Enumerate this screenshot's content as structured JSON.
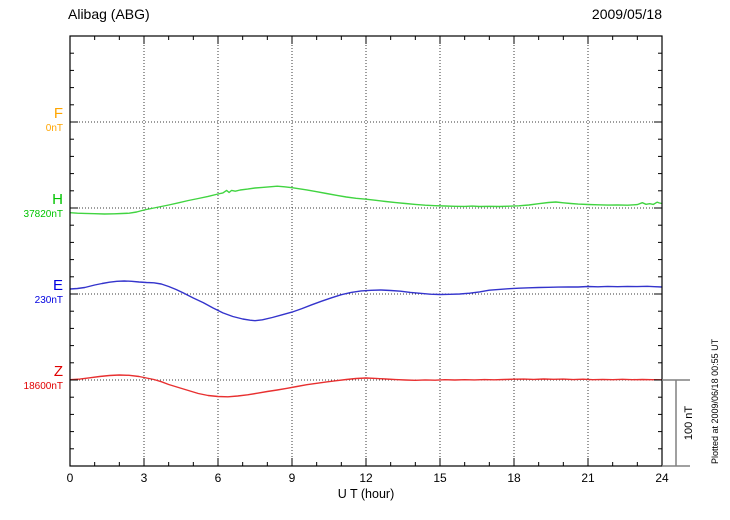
{
  "header": {
    "station_title": "Alibag (ABG)",
    "date": "2009/05/18"
  },
  "chart_data": {
    "type": "line",
    "title": "Alibag (ABG)",
    "date": "2009/05/18",
    "xlabel": "U T (hour)",
    "xlim": [
      0,
      24
    ],
    "x_ticks": [
      0,
      3,
      6,
      9,
      12,
      15,
      18,
      21,
      24
    ],
    "x_minor_step_hours": 1,
    "y_minor_division_nT": 20,
    "baseline_spacing_nT": 100,
    "grid": "dotted vertical lines every 3 hours; dotted horizontal line at each component baseline",
    "scale_bar": {
      "label": "100 nT",
      "value_nT": 100,
      "color": "#808080"
    },
    "plotted_note": "Plotted at 2009/06/18 00:55 UT",
    "series": [
      {
        "name": "F",
        "baseline_value_label": "0nT",
        "label_color": "#ffa500",
        "line_color": "#ffa500",
        "points_hour_offset_nT": []
      },
      {
        "name": "H",
        "baseline_value_label": "37820nT",
        "label_color": "#00c400",
        "line_color": "#41d441",
        "points_hour_offset_nT": [
          [
            0,
            -5.5
          ],
          [
            0.3,
            -6
          ],
          [
            0.6,
            -6.3
          ],
          [
            1,
            -6.6
          ],
          [
            1.4,
            -7
          ],
          [
            1.8,
            -6.8
          ],
          [
            2.1,
            -6.4
          ],
          [
            2.4,
            -6
          ],
          [
            2.7,
            -4.7
          ],
          [
            3,
            -2.3
          ],
          [
            3.3,
            -0.6
          ],
          [
            3.6,
            1.2
          ],
          [
            4,
            3.5
          ],
          [
            4.4,
            6
          ],
          [
            4.8,
            8.7
          ],
          [
            5.2,
            11
          ],
          [
            5.6,
            13.5
          ],
          [
            6,
            16.3
          ],
          [
            6.2,
            17.5
          ],
          [
            6.35,
            20.5
          ],
          [
            6.45,
            18
          ],
          [
            6.55,
            20.5
          ],
          [
            6.7,
            19.5
          ],
          [
            6.9,
            20.9
          ],
          [
            7.2,
            22
          ],
          [
            7.5,
            23.3
          ],
          [
            7.8,
            24
          ],
          [
            8.1,
            24.7
          ],
          [
            8.4,
            25.3
          ],
          [
            8.7,
            24.7
          ],
          [
            9,
            23.6
          ],
          [
            9.3,
            22.3
          ],
          [
            9.6,
            21
          ],
          [
            10,
            19
          ],
          [
            10.4,
            16.9
          ],
          [
            10.8,
            14.8
          ],
          [
            11.2,
            12.8
          ],
          [
            11.6,
            11.3
          ],
          [
            12,
            10.2
          ],
          [
            12.4,
            8.9
          ],
          [
            12.8,
            7.6
          ],
          [
            13.2,
            6.3
          ],
          [
            13.6,
            5.2
          ],
          [
            14,
            4.2
          ],
          [
            14.4,
            3.3
          ],
          [
            14.8,
            2.7
          ],
          [
            15.2,
            2.3
          ],
          [
            15.6,
            2
          ],
          [
            16,
            1.9
          ],
          [
            16.3,
            2.2
          ],
          [
            16.6,
            1.7
          ],
          [
            17,
            2
          ],
          [
            17.4,
            1.8
          ],
          [
            17.8,
            2.1
          ],
          [
            18.2,
            2.6
          ],
          [
            18.6,
            3.5
          ],
          [
            19,
            5
          ],
          [
            19.4,
            6.4
          ],
          [
            19.7,
            7
          ],
          [
            20,
            6
          ],
          [
            20.3,
            5.2
          ],
          [
            20.6,
            4.5
          ],
          [
            21,
            4.1
          ],
          [
            21.4,
            3.7
          ],
          [
            21.8,
            3.4
          ],
          [
            22.2,
            3.6
          ],
          [
            22.6,
            3.2
          ],
          [
            23,
            4
          ],
          [
            23.2,
            6.2
          ],
          [
            23.35,
            4.3
          ],
          [
            23.5,
            5
          ],
          [
            23.65,
            4.2
          ],
          [
            23.8,
            6.8
          ],
          [
            23.9,
            5.8
          ],
          [
            24,
            5.2
          ]
        ]
      },
      {
        "name": "E",
        "baseline_value_label": "230nT",
        "label_color": "#0000e0",
        "line_color": "#3434cc",
        "points_hour_offset_nT": [
          [
            0,
            5.8
          ],
          [
            0.3,
            6.4
          ],
          [
            0.6,
            7.6
          ],
          [
            1,
            10.5
          ],
          [
            1.3,
            12.2
          ],
          [
            1.6,
            13.7
          ],
          [
            1.9,
            14.8
          ],
          [
            2.2,
            15.1
          ],
          [
            2.5,
            14.8
          ],
          [
            2.8,
            14
          ],
          [
            3.1,
            13.4
          ],
          [
            3.4,
            13
          ],
          [
            3.7,
            11.6
          ],
          [
            4,
            8.7
          ],
          [
            4.3,
            5.2
          ],
          [
            4.6,
            1.2
          ],
          [
            5,
            -4.7
          ],
          [
            5.4,
            -10
          ],
          [
            5.8,
            -16.3
          ],
          [
            6.2,
            -22
          ],
          [
            6.6,
            -26.2
          ],
          [
            7,
            -29.1
          ],
          [
            7.3,
            -30.5
          ],
          [
            7.5,
            -31
          ],
          [
            7.8,
            -30
          ],
          [
            8.2,
            -27.3
          ],
          [
            8.6,
            -24.2
          ],
          [
            9,
            -21
          ],
          [
            9.4,
            -17
          ],
          [
            9.8,
            -12.5
          ],
          [
            10.2,
            -8.4
          ],
          [
            10.6,
            -4.4
          ],
          [
            11,
            -0.8
          ],
          [
            11.4,
            1.9
          ],
          [
            11.8,
            3.6
          ],
          [
            12.2,
            4.3
          ],
          [
            12.6,
            4.7
          ],
          [
            13,
            4.1
          ],
          [
            13.4,
            3.2
          ],
          [
            13.8,
            1.9
          ],
          [
            14.2,
            0.8
          ],
          [
            14.6,
            -0.2
          ],
          [
            15,
            -0.6
          ],
          [
            15.4,
            -0.4
          ],
          [
            15.8,
            0
          ],
          [
            16.2,
            0.9
          ],
          [
            16.6,
            2.5
          ],
          [
            17,
            4.4
          ],
          [
            17.4,
            5.4
          ],
          [
            17.8,
            6.2
          ],
          [
            18.2,
            6.8
          ],
          [
            18.6,
            7.2
          ],
          [
            19,
            7.6
          ],
          [
            19.4,
            7.8
          ],
          [
            19.8,
            8
          ],
          [
            20.2,
            8.3
          ],
          [
            20.6,
            8.1
          ],
          [
            21,
            8.7
          ],
          [
            21.4,
            8.4
          ],
          [
            21.8,
            8.8
          ],
          [
            22.2,
            8.5
          ],
          [
            22.6,
            8.8
          ],
          [
            23,
            8.6
          ],
          [
            23.4,
            8.9
          ],
          [
            23.7,
            8.5
          ],
          [
            24,
            8.1
          ]
        ]
      },
      {
        "name": "Z",
        "baseline_value_label": "18600nT",
        "label_color": "#e00000",
        "line_color": "#e83030",
        "points_hour_offset_nT": [
          [
            0,
            0.3
          ],
          [
            0.4,
            1
          ],
          [
            0.8,
            2.6
          ],
          [
            1.2,
            4.1
          ],
          [
            1.6,
            5.2
          ],
          [
            2,
            5.8
          ],
          [
            2.4,
            5.5
          ],
          [
            2.8,
            4.1
          ],
          [
            3.1,
            2.3
          ],
          [
            3.4,
            0.6
          ],
          [
            3.7,
            -2
          ],
          [
            4,
            -5.2
          ],
          [
            4.4,
            -8.7
          ],
          [
            4.8,
            -12.2
          ],
          [
            5.2,
            -15.7
          ],
          [
            5.6,
            -18
          ],
          [
            6,
            -19.2
          ],
          [
            6.4,
            -19.5
          ],
          [
            6.8,
            -18.6
          ],
          [
            7.2,
            -17.2
          ],
          [
            7.6,
            -15.3
          ],
          [
            8,
            -13.4
          ],
          [
            8.4,
            -11.6
          ],
          [
            8.8,
            -9.6
          ],
          [
            9.2,
            -7.6
          ],
          [
            9.6,
            -5.5
          ],
          [
            10,
            -3.8
          ],
          [
            10.4,
            -2.2
          ],
          [
            10.8,
            -0.8
          ],
          [
            11.2,
            0.6
          ],
          [
            11.6,
            1.7
          ],
          [
            12,
            2.3
          ],
          [
            12.4,
            1.9
          ],
          [
            12.8,
            1.2
          ],
          [
            13.2,
            0.5
          ],
          [
            13.6,
            0
          ],
          [
            14,
            -0.3
          ],
          [
            14.4,
            0.1
          ],
          [
            14.8,
            -0.2
          ],
          [
            15.2,
            0.3
          ],
          [
            15.6,
            0
          ],
          [
            16,
            0.4
          ],
          [
            16.4,
            0.1
          ],
          [
            16.8,
            0.5
          ],
          [
            17.2,
            0.2
          ],
          [
            17.6,
            0.6
          ],
          [
            18,
            0.9
          ],
          [
            18.4,
            1.1
          ],
          [
            18.8,
            0.7
          ],
          [
            19.2,
            1.2
          ],
          [
            19.6,
            0.8
          ],
          [
            20,
            1.1
          ],
          [
            20.4,
            0.5
          ],
          [
            20.8,
            0.9
          ],
          [
            21.2,
            0.4
          ],
          [
            21.6,
            0.7
          ],
          [
            22,
            0.3
          ],
          [
            22.4,
            0.8
          ],
          [
            22.8,
            0.4
          ],
          [
            23.2,
            0.6
          ],
          [
            23.6,
            0.3
          ],
          [
            24,
            0.2
          ]
        ]
      }
    ]
  }
}
